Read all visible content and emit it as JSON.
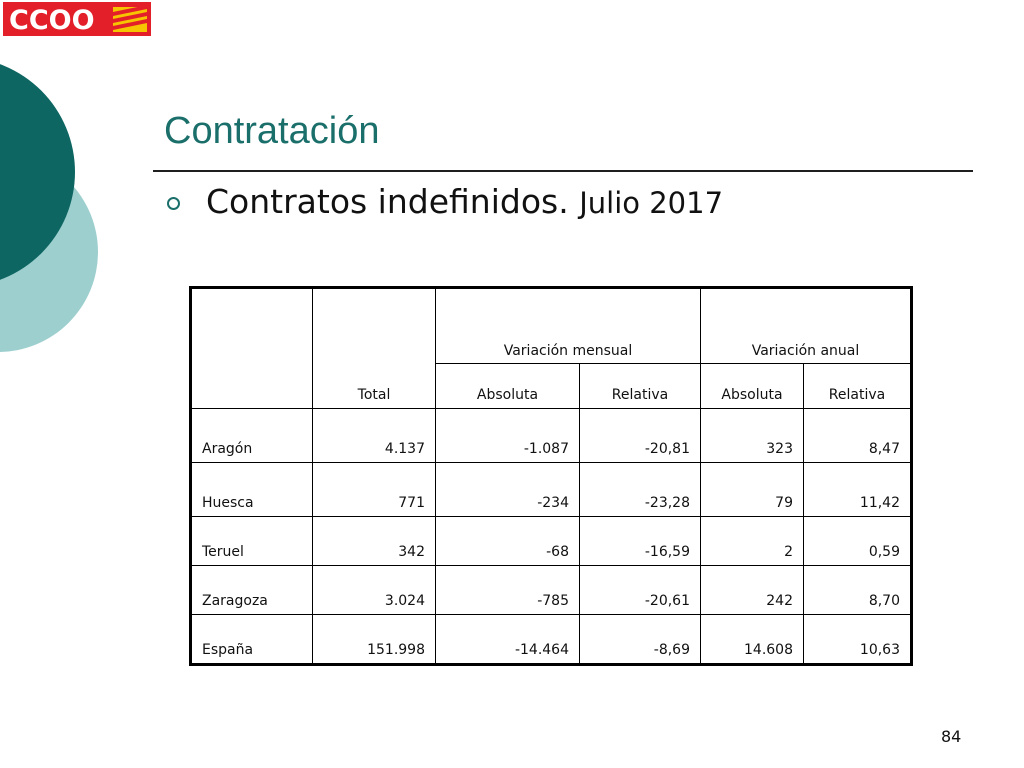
{
  "logo": {
    "text": "CCOO",
    "colors": {
      "background": "#e3202a",
      "text": "#ffffff",
      "flag_yellow": "#f6c400"
    }
  },
  "theme": {
    "title_color": "#1b6f6b",
    "shape_dark": "#0d6662",
    "shape_light": "#9ecfcf"
  },
  "slide": {
    "title": "Contratación",
    "bullet": {
      "icon": "hollow-circle-bullet",
      "text_main": "Contratos indefinidos.",
      "text_sub": "Julio 2017"
    },
    "page_number": "84"
  },
  "table": {
    "group_headers": {
      "monthly": "Variación mensual",
      "annual": "Variación anual"
    },
    "sub_headers": {
      "total": "Total",
      "monthly_abs": "Absoluta",
      "monthly_rel": "Relativa",
      "annual_abs": "Absoluta",
      "annual_rel": "Relativa"
    },
    "rows": [
      {
        "label": "Aragón",
        "total": "4.137",
        "m_abs": "-1.087",
        "m_rel": "-20,81",
        "a_abs": "323",
        "a_rel": "8,47"
      },
      {
        "label": "Huesca",
        "total": "771",
        "m_abs": "-234",
        "m_rel": "-23,28",
        "a_abs": "79",
        "a_rel": "11,42"
      },
      {
        "label": "Teruel",
        "total": "342",
        "m_abs": "-68",
        "m_rel": "-16,59",
        "a_abs": "2",
        "a_rel": "0,59"
      },
      {
        "label": "Zaragoza",
        "total": "3.024",
        "m_abs": "-785",
        "m_rel": "-20,61",
        "a_abs": "242",
        "a_rel": "8,70"
      },
      {
        "label": "España",
        "total": "151.998",
        "m_abs": "-14.464",
        "m_rel": "-8,69",
        "a_abs": "14.608",
        "a_rel": "10,63"
      }
    ]
  }
}
